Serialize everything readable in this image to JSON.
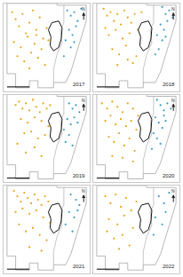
{
  "chart_data": [
    {
      "type": "scatter",
      "title": "2017",
      "xlim": [
        0,
        100
      ],
      "ylim": [
        0,
        100
      ],
      "tick_labels": false,
      "grid": false,
      "series": [
        {
          "color": "#e8a317",
          "marker": "circle",
          "x": [
            10,
            14,
            18,
            22,
            26,
            30,
            34,
            38,
            42,
            46,
            50,
            12,
            20,
            28,
            36,
            44,
            52,
            16,
            24,
            32,
            40,
            48,
            30,
            38
          ],
          "values": [
            90,
            82,
            74,
            88,
            66,
            78,
            92,
            70,
            84,
            60,
            72,
            56,
            50,
            62,
            54,
            48,
            58,
            40,
            34,
            44,
            38,
            30,
            26,
            64
          ]
        },
        {
          "color": "#3a9cc4",
          "marker": "circle",
          "x": [
            74,
            78,
            82,
            86,
            90,
            76,
            80,
            84,
            72,
            78,
            70,
            82
          ],
          "values": [
            92,
            86,
            90,
            80,
            94,
            70,
            64,
            74,
            58,
            50,
            40,
            56
          ]
        }
      ]
    },
    {
      "type": "scatter",
      "title": "2018",
      "xlim": [
        0,
        100
      ],
      "ylim": [
        0,
        100
      ],
      "tick_labels": false,
      "grid": false,
      "series": [
        {
          "color": "#e8a317",
          "marker": "circle",
          "x": [
            12,
            16,
            20,
            24,
            28,
            32,
            36,
            40,
            44,
            48,
            52,
            56,
            18,
            26,
            34,
            42,
            50,
            22,
            30,
            38,
            46,
            14,
            28,
            40
          ],
          "values": [
            94,
            86,
            90,
            80,
            88,
            76,
            92,
            84,
            78,
            88,
            70,
            90,
            64,
            70,
            60,
            66,
            40,
            48,
            42,
            52,
            32,
            72,
            30,
            36
          ]
        },
        {
          "color": "#3a9cc4",
          "marker": "circle",
          "x": [
            80,
            84,
            88,
            92,
            78,
            82,
            86,
            74,
            80,
            76,
            72,
            84
          ],
          "values": [
            96,
            88,
            92,
            84,
            76,
            70,
            80,
            64,
            58,
            48,
            42,
            62
          ]
        }
      ]
    },
    {
      "type": "scatter",
      "title": "2019",
      "xlim": [
        0,
        100
      ],
      "ylim": [
        0,
        100
      ],
      "tick_labels": false,
      "grid": false,
      "series": [
        {
          "color": "#e8a317",
          "marker": "circle",
          "x": [
            14,
            18,
            22,
            26,
            30,
            34,
            38,
            42,
            46,
            50,
            54,
            20,
            28,
            36,
            44,
            52,
            24,
            32,
            40,
            48,
            16,
            36,
            26,
            44
          ],
          "values": [
            88,
            92,
            84,
            90,
            82,
            94,
            86,
            80,
            90,
            84,
            88,
            72,
            68,
            74,
            70,
            64,
            56,
            58,
            50,
            54,
            44,
            40,
            34,
            30
          ]
        },
        {
          "color": "#3a9cc4",
          "marker": "circle",
          "x": [
            76,
            80,
            84,
            88,
            74,
            78,
            82,
            70,
            76,
            72,
            80,
            86
          ],
          "values": [
            90,
            84,
            88,
            80,
            72,
            66,
            74,
            60,
            54,
            46,
            42,
            68
          ]
        }
      ]
    },
    {
      "type": "scatter",
      "title": "2020",
      "xlim": [
        0,
        100
      ],
      "ylim": [
        0,
        100
      ],
      "tick_labels": false,
      "grid": false,
      "series": [
        {
          "color": "#e8a317",
          "marker": "circle",
          "x": [
            10,
            16,
            22,
            28,
            34,
            40,
            46,
            52,
            14,
            20,
            26,
            32,
            38,
            44,
            50,
            18,
            24,
            30,
            36,
            42,
            48,
            22,
            34,
            46
          ],
          "values": [
            90,
            84,
            92,
            86,
            80,
            90,
            84,
            76,
            70,
            76,
            66,
            72,
            64,
            70,
            60,
            52,
            46,
            56,
            42,
            50,
            36,
            30,
            28,
            24
          ]
        },
        {
          "color": "#3a9cc4",
          "marker": "circle",
          "x": [
            74,
            78,
            82,
            86,
            90,
            72,
            76,
            80,
            84,
            70,
            74,
            78,
            68,
            82
          ],
          "values": [
            94,
            88,
            82,
            90,
            84,
            74,
            68,
            62,
            70,
            56,
            50,
            44,
            38,
            76
          ]
        }
      ]
    },
    {
      "type": "scatter",
      "title": "2021",
      "xlim": [
        0,
        100
      ],
      "ylim": [
        0,
        100
      ],
      "tick_labels": false,
      "grid": false,
      "series": [
        {
          "color": "#e8a317",
          "marker": "circle",
          "x": [
            12,
            16,
            20,
            24,
            28,
            32,
            36,
            40,
            44,
            48,
            52,
            14,
            22,
            30,
            38,
            46,
            54,
            18,
            26,
            34,
            42,
            50,
            30,
            44
          ],
          "values": [
            94,
            88,
            82,
            92,
            86,
            80,
            90,
            84,
            78,
            88,
            82,
            70,
            74,
            68,
            72,
            64,
            58,
            56,
            48,
            52,
            44,
            38,
            30,
            26
          ]
        },
        {
          "color": "#3a9cc4",
          "marker": "circle",
          "x": [
            78,
            84,
            88,
            76,
            82,
            72,
            80,
            86
          ],
          "values": [
            90,
            84,
            78,
            70,
            64,
            56,
            48,
            72
          ]
        }
      ]
    },
    {
      "type": "scatter",
      "title": "2022",
      "xlim": [
        0,
        100
      ],
      "ylim": [
        0,
        100
      ],
      "tick_labels": false,
      "grid": false,
      "series": [
        {
          "color": "#e8a317",
          "marker": "circle",
          "x": [
            14,
            20,
            26,
            32,
            38,
            44,
            50,
            18,
            28,
            36,
            46,
            24,
            34,
            42,
            16,
            30
          ],
          "values": [
            88,
            80,
            90,
            76,
            86,
            72,
            82,
            62,
            56,
            66,
            52,
            40,
            44,
            32,
            48,
            28
          ]
        },
        {
          "color": "#3a9cc4",
          "marker": "circle",
          "x": [
            76,
            82,
            88,
            72,
            80,
            70,
            84
          ],
          "values": [
            88,
            80,
            92,
            64,
            56,
            44,
            70
          ]
        }
      ]
    }
  ],
  "map": {
    "north": "N",
    "outline": {
      "x": [
        4,
        62,
        62,
        96,
        96,
        90,
        84,
        78,
        72,
        58,
        58,
        40,
        40,
        30,
        30,
        14,
        14,
        4,
        4
      ],
      "y": [
        100,
        100,
        98,
        98,
        80,
        60,
        40,
        22,
        10,
        10,
        4,
        4,
        12,
        12,
        4,
        4,
        20,
        20,
        100
      ]
    },
    "divide": {
      "x": [
        70,
        70,
        66,
        68,
        62,
        58,
        58
      ],
      "y": [
        98,
        78,
        70,
        55,
        42,
        25,
        10
      ]
    },
    "core": {
      "x": [
        56,
        64,
        68,
        67,
        64,
        58,
        54,
        55,
        52,
        56
      ],
      "y": [
        78,
        80,
        72,
        60,
        50,
        46,
        52,
        62,
        70,
        78
      ]
    }
  }
}
